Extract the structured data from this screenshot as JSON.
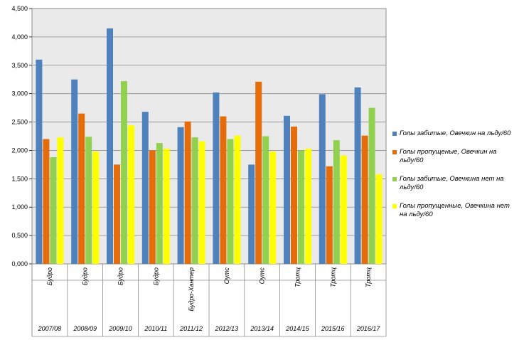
{
  "chart_data": {
    "type": "bar",
    "title": "",
    "xlabel": "",
    "ylabel": "",
    "ylim": [
      0,
      4.5
    ],
    "y_ticks": [
      "0,000",
      "0,500",
      "1,000",
      "1,500",
      "2,000",
      "2,500",
      "3,000",
      "3,500",
      "4,000",
      "4,500"
    ],
    "grid": true,
    "legend_position": "right",
    "categories": [
      {
        "coach": "Будро",
        "season": "2007/08"
      },
      {
        "coach": "Будро",
        "season": "2008/09"
      },
      {
        "coach": "Будро",
        "season": "2009/10"
      },
      {
        "coach": "Будро",
        "season": "2010/11"
      },
      {
        "coach": "Будро-Хантер",
        "season": "2011/12"
      },
      {
        "coach": "Оутс",
        "season": "2012/13"
      },
      {
        "coach": "Оутс",
        "season": "2013/14"
      },
      {
        "coach": "Тротц",
        "season": "2014/15"
      },
      {
        "coach": "Тротц",
        "season": "2015/16"
      },
      {
        "coach": "Тротц",
        "season": "2016/17"
      }
    ],
    "series": [
      {
        "name": "Голы забитые, Овечкин на льду/60",
        "color": "#4F81BD",
        "values": [
          3.6,
          3.25,
          4.15,
          2.68,
          2.41,
          3.02,
          1.75,
          2.61,
          2.99,
          3.11
        ]
      },
      {
        "name": "Голы пропущеные, Овечкин на льду/60",
        "color": "#E46C0A",
        "values": [
          2.2,
          2.65,
          1.75,
          2.0,
          2.51,
          2.6,
          3.21,
          2.42,
          1.72,
          2.26
        ]
      },
      {
        "name": "Голы забитые, Овечкина нет на льду/60",
        "color": "#92D050",
        "values": [
          1.88,
          2.24,
          3.22,
          2.13,
          2.23,
          2.2,
          2.25,
          2.0,
          2.18,
          2.75
        ]
      },
      {
        "name": "Голы пропущенные, Овечкина нет на льду/60",
        "color": "#FFFF00",
        "values": [
          2.23,
          1.98,
          2.44,
          2.03,
          2.16,
          2.26,
          1.98,
          2.03,
          1.91,
          1.58
        ]
      }
    ]
  }
}
